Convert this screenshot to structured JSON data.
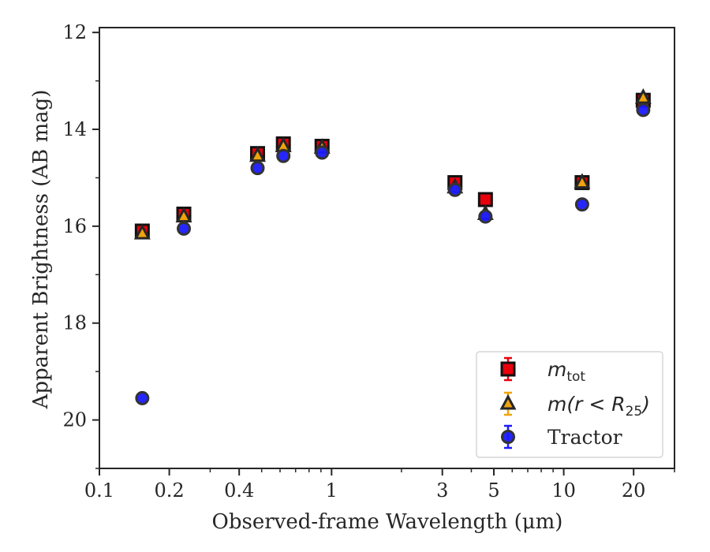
{
  "chart_data": {
    "type": "scatter",
    "xlabel": "Observed-frame Wavelength (μm)",
    "ylabel": "Apparent Brightness (AB mag)",
    "xscale": "log",
    "xlim": [
      0.1,
      30
    ],
    "ylim": [
      21,
      11.9
    ],
    "y_inverted": true,
    "x_ticks": [
      0.1,
      0.2,
      0.4,
      1,
      3,
      5,
      10,
      20
    ],
    "x_tick_labels": [
      "0.1",
      "0.2",
      "0.4",
      "1",
      "3",
      "5",
      "10",
      "20"
    ],
    "y_ticks": [
      12,
      14,
      16,
      18,
      20
    ],
    "y_tick_labels": [
      "12",
      "14",
      "16",
      "18",
      "20"
    ],
    "grid": false,
    "legend_position": "lower-right",
    "series": [
      {
        "name": "m_tot",
        "legend_main": "m",
        "legend_sub": "tot",
        "marker": "square",
        "color": "#e8000b",
        "x": [
          0.153,
          0.231,
          0.48,
          0.62,
          0.91,
          3.4,
          4.6,
          12.0,
          22.0
        ],
        "y": [
          16.1,
          15.75,
          14.5,
          14.3,
          14.35,
          15.1,
          15.45,
          15.1,
          13.4
        ]
      },
      {
        "name": "m(r < R25)",
        "legend_main": "m(r < R",
        "legend_sub": "25",
        "legend_end": ")",
        "marker": "triangle",
        "color": "#f0a30a",
        "x": [
          0.153,
          0.231,
          0.48,
          0.62,
          0.91,
          3.4,
          4.6,
          12.0,
          22.0
        ],
        "y": [
          16.15,
          15.8,
          14.55,
          14.35,
          14.38,
          15.2,
          15.75,
          15.1,
          13.35
        ]
      },
      {
        "name": "Tractor",
        "marker": "circle",
        "color": "#1a1aff",
        "x": [
          0.153,
          0.231,
          0.48,
          0.62,
          0.91,
          3.4,
          4.6,
          12.0,
          22.0
        ],
        "y": [
          19.55,
          16.05,
          14.8,
          14.55,
          14.48,
          15.25,
          15.8,
          15.55,
          13.6
        ]
      }
    ]
  }
}
